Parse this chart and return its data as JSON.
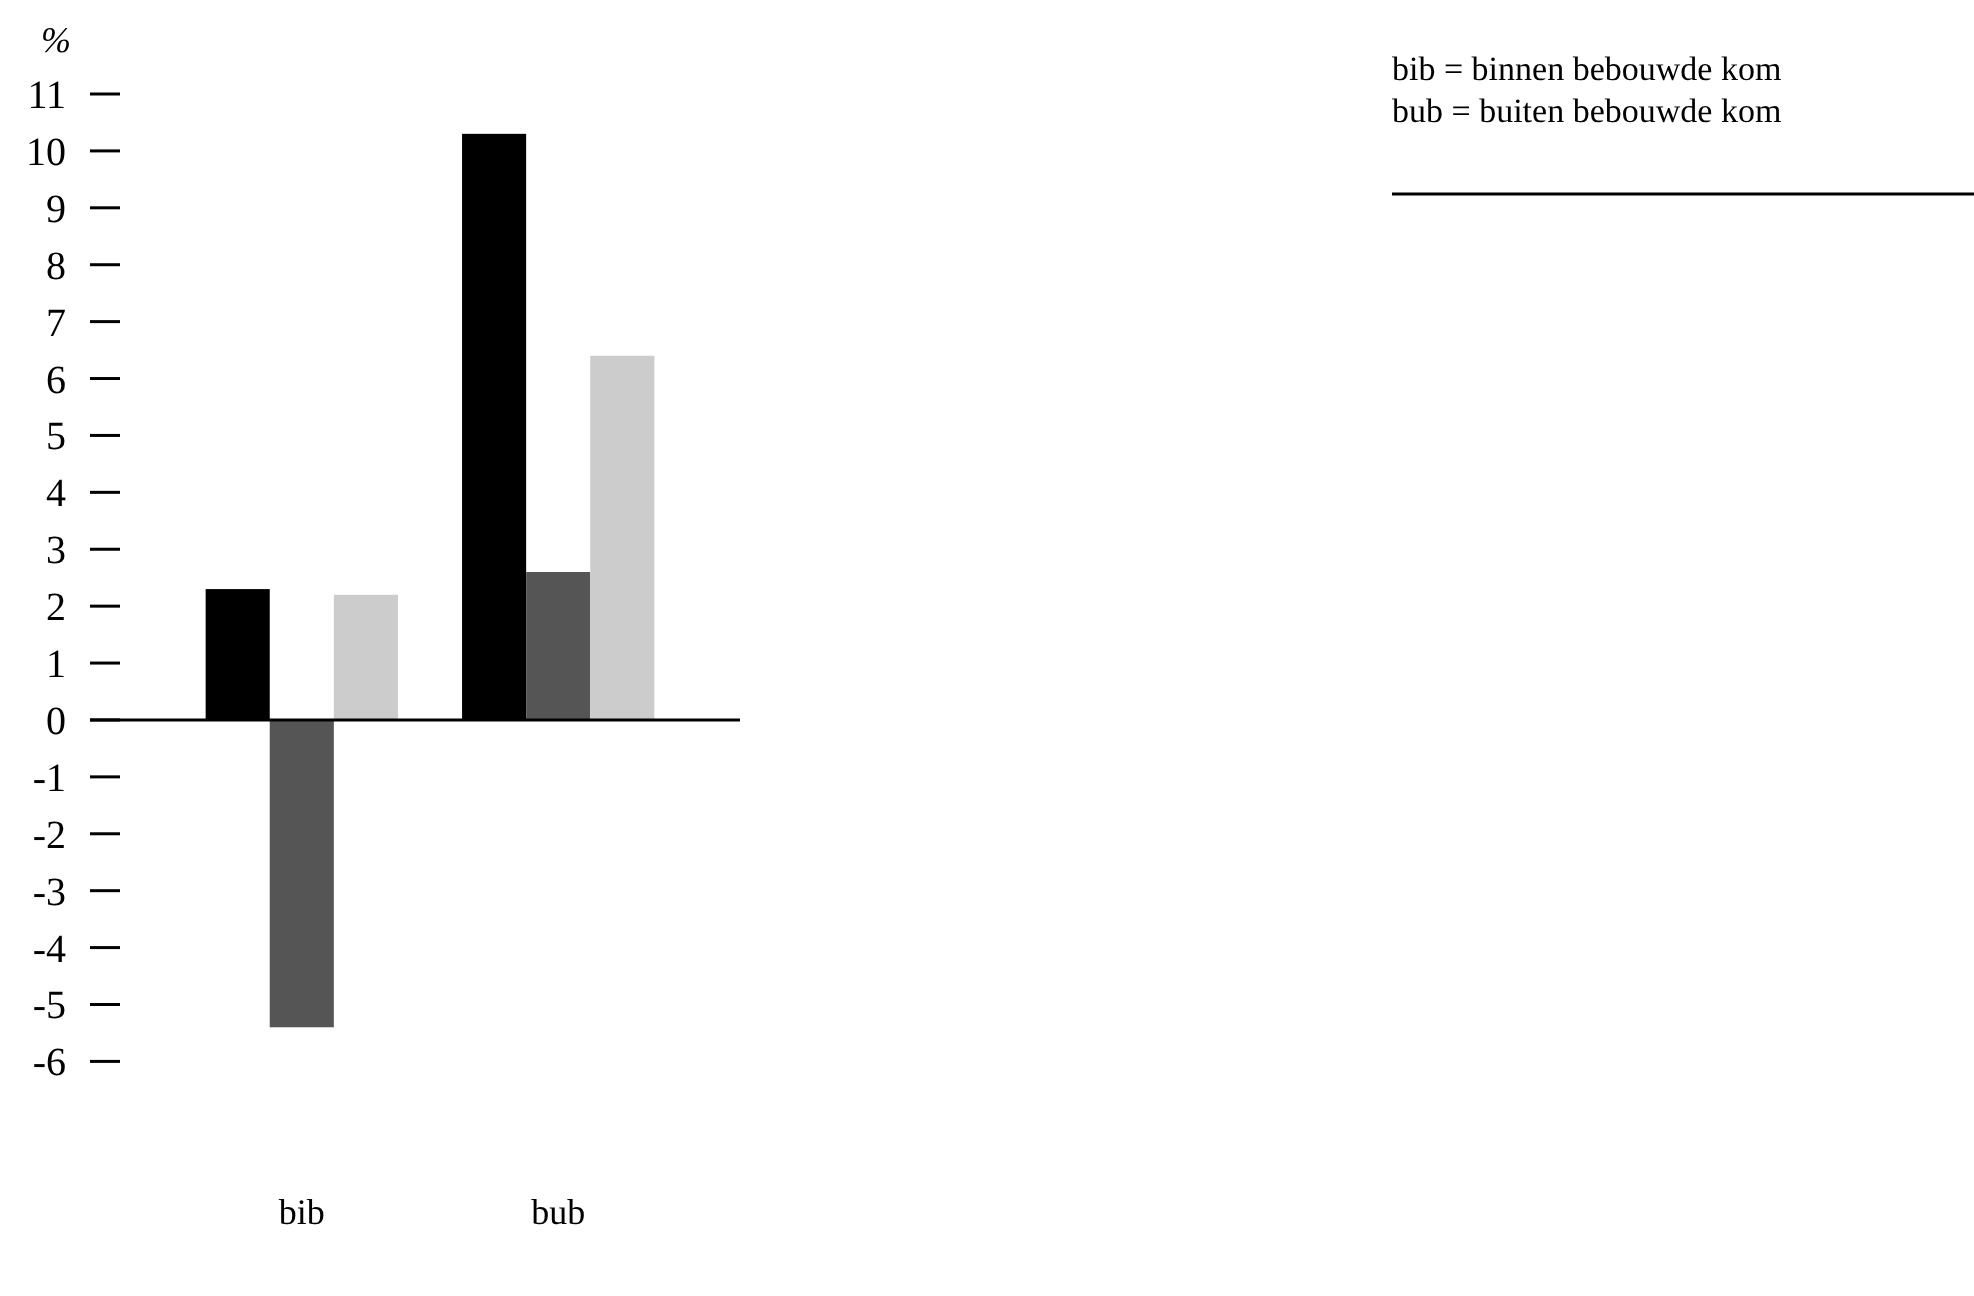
{
  "chart_data": {
    "type": "bar",
    "ylabel": "%",
    "categories": [
      "bib",
      "bub"
    ],
    "series": [
      {
        "color": "#000000",
        "values": [
          2.3,
          10.3
        ]
      },
      {
        "color": "#555555",
        "values": [
          -5.4,
          2.6
        ]
      },
      {
        "color": "#cccccc",
        "values": [
          2.2,
          6.4
        ]
      }
    ],
    "ylim": [
      -6,
      11
    ],
    "yticks": [
      -6,
      -5,
      -4,
      -3,
      -2,
      -1,
      0,
      1,
      2,
      3,
      4,
      5,
      6,
      7,
      8,
      9,
      10,
      11
    ],
    "annotations": [
      "bib  = binnen bebouwde kom",
      "bub = buiten bebouwde kom"
    ]
  }
}
